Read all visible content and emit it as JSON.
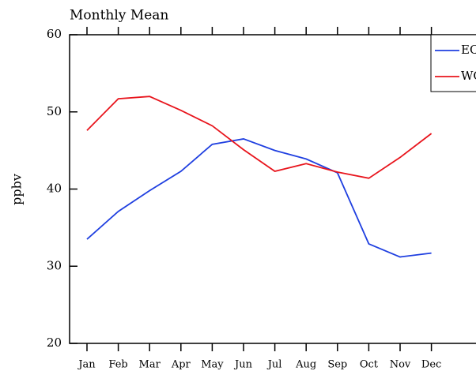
{
  "chart_data": {
    "type": "line",
    "title": "Monthly Mean",
    "y_label": "ppbv",
    "categories": [
      "Jan",
      "Feb",
      "Mar",
      "Apr",
      "May",
      "Jun",
      "Jul",
      "Aug",
      "Sep",
      "Oct",
      "Nov",
      "Dec"
    ],
    "series": [
      {
        "name": "EC",
        "color": "#1f3fe0",
        "values": [
          33.5,
          37.1,
          39.8,
          42.3,
          45.8,
          46.5,
          45.0,
          43.9,
          42.1,
          32.9,
          31.2,
          31.7
        ]
      },
      {
        "name": "WC",
        "color": "#e8141c",
        "values": [
          47.6,
          51.7,
          52.0,
          50.2,
          48.2,
          45.1,
          42.3,
          43.3,
          42.2,
          41.4,
          44.1,
          47.2
        ]
      }
    ],
    "ylim": [
      20,
      60
    ],
    "yticks": [
      20,
      30,
      40,
      50,
      60
    ],
    "legend": "top-right"
  }
}
